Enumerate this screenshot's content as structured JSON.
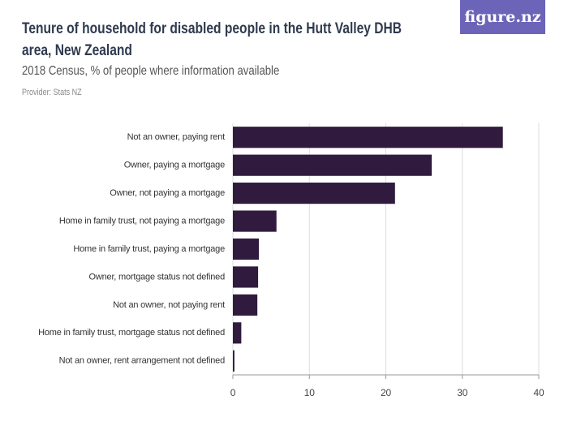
{
  "logo": "figure.nz",
  "chart_data": {
    "type": "bar",
    "orientation": "horizontal",
    "title": "Tenure of household for disabled people in the Hutt Valley DHB area, New Zealand",
    "subtitle": "2018 Census, % of people where information available",
    "provider": "Provider: Stats NZ",
    "categories": [
      "Not an owner, paying rent",
      "Owner, paying a mortgage",
      "Owner, not paying a mortgage",
      "Home in family trust, not paying a mortgage",
      "Home in family trust, paying a mortgage",
      "Owner, mortgage status not defined",
      "Not an owner, not paying rent",
      "Home in family trust, mortgage status not defined",
      "Not an owner, rent arrangement not defined"
    ],
    "values": [
      35.3,
      26.0,
      21.2,
      5.7,
      3.4,
      3.3,
      3.2,
      1.1,
      0.2
    ],
    "color": "#301b3f",
    "xlim": [
      0,
      40
    ],
    "xticks": [
      0,
      10,
      20,
      30,
      40
    ],
    "grid": true
  }
}
